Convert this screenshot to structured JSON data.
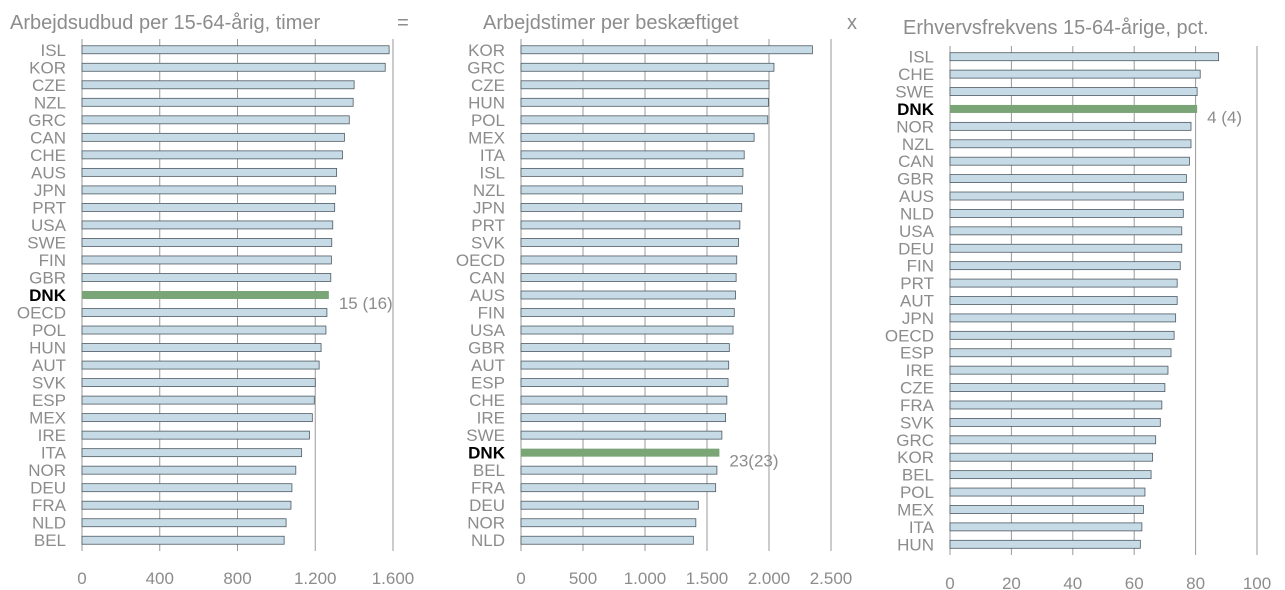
{
  "colors": {
    "bar_fill": "#c6dbe6",
    "bar_stroke": "#4f5a63",
    "highlight": "#7aa577",
    "text": "#8c8c8c",
    "grid": "#9a9a9a"
  },
  "operators": [
    "=",
    "x"
  ],
  "chart_data": [
    {
      "type": "bar",
      "orientation": "horizontal",
      "title": "Arbejdsudbud per 15-64-årig, timer",
      "categories": [
        "ISL",
        "KOR",
        "CZE",
        "NZL",
        "GRC",
        "CAN",
        "CHE",
        "AUS",
        "JPN",
        "PRT",
        "USA",
        "SWE",
        "FIN",
        "GBR",
        "DNK",
        "OECD",
        "POL",
        "HUN",
        "AUT",
        "SVK",
        "ESP",
        "MEX",
        "IRE",
        "ITA",
        "NOR",
        "DEU",
        "FRA",
        "NLD",
        "BEL"
      ],
      "values": [
        1580,
        1560,
        1400,
        1395,
        1375,
        1350,
        1340,
        1310,
        1305,
        1300,
        1290,
        1285,
        1283,
        1280,
        1270,
        1260,
        1255,
        1230,
        1220,
        1200,
        1195,
        1185,
        1170,
        1130,
        1100,
        1080,
        1075,
        1050,
        1040
      ],
      "highlight": "DNK",
      "annotation": "15 (16)",
      "xlim": [
        0,
        1600
      ],
      "xticks": [
        0,
        400,
        800,
        1200,
        1600
      ],
      "xtick_labels": [
        "0",
        "400",
        "800",
        "1.200",
        "1.600"
      ],
      "grid": true
    },
    {
      "type": "bar",
      "orientation": "horizontal",
      "title": "Arbejdstimer per beskæftiget",
      "categories": [
        "KOR",
        "GRC",
        "CZE",
        "HUN",
        "POL",
        "MEX",
        "ITA",
        "ISL",
        "NZL",
        "JPN",
        "PRT",
        "SVK",
        "OECD",
        "CAN",
        "AUS",
        "FIN",
        "USA",
        "GBR",
        "AUT",
        "ESP",
        "CHE",
        "IRE",
        "SWE",
        "DNK",
        "BEL",
        "FRA",
        "DEU",
        "NOR",
        "NLD"
      ],
      "values": [
        2350,
        2040,
        2000,
        1995,
        1990,
        1880,
        1800,
        1790,
        1785,
        1780,
        1765,
        1755,
        1740,
        1735,
        1730,
        1720,
        1710,
        1680,
        1675,
        1670,
        1660,
        1650,
        1620,
        1600,
        1580,
        1570,
        1430,
        1410,
        1390
      ],
      "highlight": "DNK",
      "annotation": "23(23)",
      "xlim": [
        0,
        2500
      ],
      "xticks": [
        0,
        500,
        1000,
        1500,
        2000,
        2500
      ],
      "xtick_labels": [
        "0",
        "500",
        "1.000",
        "1.500",
        "2.000",
        "2.500"
      ],
      "grid": true
    },
    {
      "type": "bar",
      "orientation": "horizontal",
      "title": "Erhvervsfrekvens 15-64-årige, pct.",
      "categories": [
        "ISL",
        "CHE",
        "SWE",
        "DNK",
        "NOR",
        "NZL",
        "CAN",
        "GBR",
        "AUS",
        "NLD",
        "USA",
        "DEU",
        "FIN",
        "PRT",
        "AUT",
        "JPN",
        "OECD",
        "ESP",
        "IRE",
        "CZE",
        "FRA",
        "SVK",
        "GRC",
        "KOR",
        "BEL",
        "POL",
        "MEX",
        "ITA",
        "HUN"
      ],
      "values": [
        87.5,
        81.5,
        80.5,
        80.5,
        78.5,
        78.5,
        78.0,
        77.0,
        76.0,
        76.0,
        75.5,
        75.5,
        75.0,
        74.0,
        74.0,
        73.5,
        73.0,
        72.0,
        71.0,
        70.0,
        69.0,
        68.5,
        67.0,
        66.0,
        65.5,
        63.5,
        63.0,
        62.5,
        62.0
      ],
      "highlight": "DNK",
      "annotation": "4 (4)",
      "xlim": [
        0,
        100
      ],
      "xticks": [
        0,
        20,
        40,
        60,
        80,
        100
      ],
      "xtick_labels": [
        "0",
        "20",
        "40",
        "60",
        "80",
        "100"
      ],
      "grid": true
    }
  ]
}
